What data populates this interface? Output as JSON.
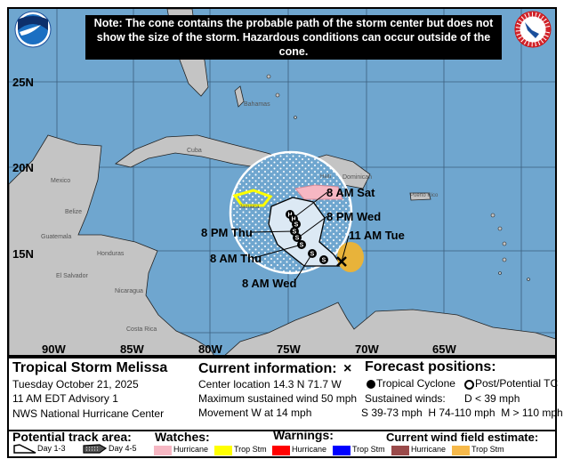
{
  "note": "Note: The cone contains the probable path of the storm center but does not show the size of the storm. Hazardous conditions can occur outside of the cone.",
  "logos": {
    "left": "NOAA",
    "right": "National Weather Service"
  },
  "map": {
    "lat_labels": [
      "25N",
      "20N",
      "15N"
    ],
    "lon_labels": [
      "90W",
      "85W",
      "80W",
      "75W",
      "70W",
      "65W"
    ],
    "place_labels": [
      "Bahamas",
      "Cuba",
      "Mexico",
      "Belize",
      "Guatemala",
      "Honduras",
      "El Salvador",
      "Nicaragua",
      "Costa Rica",
      "Jamaica",
      "Haiti",
      "Dominican",
      "Puerto Rico"
    ],
    "track": {
      "points": [
        {
          "label": "11 AM Tue",
          "symbol": "X"
        },
        {
          "label": "",
          "symbol": "S"
        },
        {
          "label": "8 AM Wed",
          "symbol": "S"
        },
        {
          "label": "8 PM Wed",
          "symbol": "S"
        },
        {
          "label": "8 AM Thu",
          "symbol": "S"
        },
        {
          "label": "8 PM Thu",
          "symbol": "S"
        },
        {
          "label": "",
          "symbol": "S"
        },
        {
          "label": "",
          "symbol": "H"
        },
        {
          "label": "8 AM Sat",
          "symbol": "H"
        }
      ]
    },
    "colors": {
      "ocean": "#6fa6cf",
      "land": "#c4c4c4",
      "hurricane_watch": "#f6b7c3",
      "trop_storm_watch": "#ffff00",
      "wind_field_trop_stm": "#e8b33a"
    }
  },
  "info": {
    "storm_name": "Tropical Storm Melissa",
    "date": "Tuesday October 21, 2025",
    "advisory": "11 AM EDT Advisory 1",
    "center": "NWS National Hurricane Center",
    "current_title": "Current information:",
    "current_symbol": "×",
    "location": "Center location 14.3 N 71.7 W",
    "max_wind": "Maximum sustained wind 50 mph",
    "movement": "Movement W at 14 mph",
    "forecast_title": "Forecast positions:",
    "tc": "Tropical Cyclone",
    "post_tc": "Post/Potential TC",
    "sustained": "Sustained winds:",
    "d": "D < 39 mph",
    "shm": "S 39-73 mph  H 74-110 mph  M > 110 mph"
  },
  "legend": {
    "track_title": "Potential track area:",
    "day13": "Day 1-3",
    "day45": "Day 4-5",
    "watches_title": "Watches:",
    "warnings_title": "Warnings:",
    "wind_title": "Current wind field estimate:",
    "hurricane": "Hurricane",
    "trop_stm": "Trop Stm",
    "colors": {
      "watch_hurricane": "#f6b7c3",
      "watch_ts": "#ffff00",
      "warn_hurricane": "#ff0000",
      "warn_ts": "#0000ff",
      "wind_hurricane": "#9a4a4a",
      "wind_ts": "#f6b94a"
    }
  }
}
